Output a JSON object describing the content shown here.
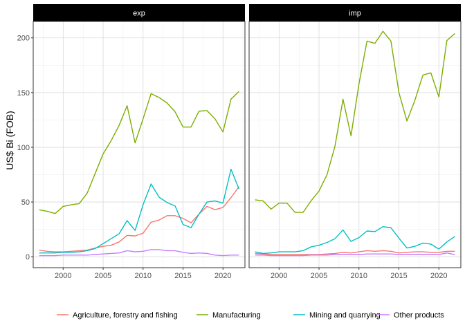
{
  "chart_data": {
    "type": "line",
    "ylabel": "US$ Bi (FOB)",
    "xlabel": "",
    "legend_position": "bottom",
    "grid": true,
    "xlim": [
      1996.25,
      2022.75
    ],
    "ylim": [
      -10,
      215
    ],
    "x_ticks": [
      2000,
      2005,
      2010,
      2015,
      2020
    ],
    "y_ticks": [
      0,
      50,
      100,
      150,
      200
    ],
    "x": [
      1997,
      1998,
      1999,
      2000,
      2001,
      2002,
      2003,
      2004,
      2005,
      2006,
      2007,
      2008,
      2009,
      2010,
      2011,
      2012,
      2013,
      2014,
      2015,
      2016,
      2017,
      2018,
      2019,
      2020,
      2021,
      2022
    ],
    "panels": [
      {
        "label": "exp",
        "series": [
          {
            "name": "Agriculture, forestry and fishing",
            "color": "#F8766D",
            "values": [
              6,
              5,
              4.5,
              4.5,
              5,
              5.5,
              6,
              8,
              9.5,
              10.5,
              13.5,
              19.5,
              19,
              21.5,
              31.5,
              33.5,
              37.5,
              37.5,
              35,
              31,
              39,
              46,
              43,
              45,
              54,
              64
            ]
          },
          {
            "name": "Manufacturing",
            "color": "#7CAE00",
            "values": [
              43,
              41.5,
              39.5,
              46,
              47.5,
              48.5,
              58,
              76,
              94,
              106,
              120,
              138,
              104,
              126,
              149,
              145.5,
              140.5,
              132.5,
              118.5,
              118.5,
              133,
              133.5,
              126,
              114,
              144,
              151
            ]
          },
          {
            "name": "Mining and quarrying",
            "color": "#00BFC4",
            "values": [
              3.5,
              3.5,
              3.5,
              4,
              4,
              4.5,
              5.5,
              7.5,
              12,
              16.5,
              21,
              33,
              24,
              47.5,
              66.5,
              54.5,
              49.5,
              46.5,
              29.5,
              26.5,
              39,
              50,
              51,
              49,
              80,
              62
            ]
          },
          {
            "name": "Other products",
            "color": "#C77CFF",
            "values": [
              1,
              1,
              1,
              1.5,
              1.5,
              1.5,
              1.5,
              2,
              2.5,
              3,
              3.5,
              5.5,
              4.5,
              5,
              6.5,
              6.5,
              5.5,
              5.5,
              4,
              3,
              3.5,
              3,
              1.5,
              1,
              1.5,
              1.5
            ]
          }
        ]
      },
      {
        "label": "imp",
        "series": [
          {
            "name": "Agriculture, forestry and fishing",
            "color": "#F8766D",
            "values": [
              3,
              2.5,
              2,
              2,
              2,
              2,
              2,
              2,
              2,
              2.5,
              3,
              4,
              3.5,
              4.5,
              5.5,
              5,
              5.5,
              5,
              3.5,
              4,
              4.5,
              4.5,
              4,
              4,
              5,
              5
            ]
          },
          {
            "name": "Manufacturing",
            "color": "#7CAE00",
            "values": [
              52,
              51,
              43.5,
              49,
              49,
              40.5,
              40.5,
              51,
              60,
              75,
              101,
              144,
              110.5,
              158,
              197,
              195,
              206,
              197,
              150,
              124,
              143,
              166,
              168,
              146,
              197.5,
              204
            ]
          },
          {
            "name": "Mining and quarrying",
            "color": "#00BFC4",
            "values": [
              4.5,
              3,
              3.5,
              4.5,
              4.5,
              4.5,
              5.5,
              9,
              10.5,
              13,
              16.5,
              24.5,
              14,
              17.5,
              23.5,
              23,
              27.5,
              26.5,
              17,
              8,
              9.5,
              12.5,
              11.5,
              7,
              13.5,
              18.5
            ]
          },
          {
            "name": "Other products",
            "color": "#C77CFF",
            "values": [
              1.5,
              1.5,
              1,
              1,
              1,
              1,
              1,
              1.5,
              1.5,
              1.5,
              2,
              2,
              2,
              2,
              2.5,
              2.5,
              2.5,
              2.5,
              2,
              2,
              2,
              2,
              2,
              2,
              3.5,
              2
            ]
          }
        ]
      }
    ],
    "legend": [
      "Agriculture, forestry and fishing",
      "Manufacturing",
      "Mining and quarrying",
      "Other products"
    ]
  }
}
